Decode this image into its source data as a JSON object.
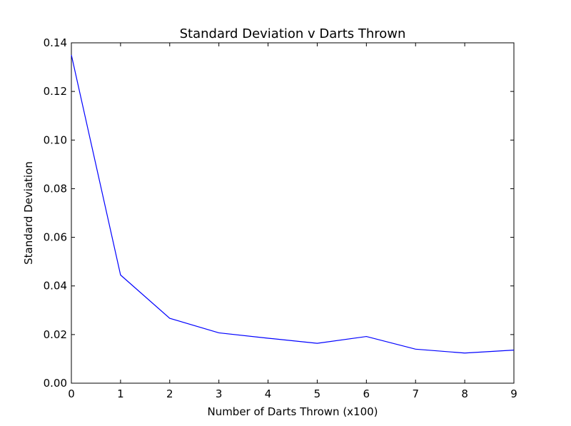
{
  "chart_data": {
    "type": "line",
    "title": "Standard Deviation v Darts Thrown",
    "xlabel": "Number of Darts Thrown (x100)",
    "ylabel": "Standard Deviation",
    "xlim": [
      0,
      9
    ],
    "ylim": [
      0,
      0.14
    ],
    "x_ticks": [
      0,
      1,
      2,
      3,
      4,
      5,
      6,
      7,
      8,
      9
    ],
    "x_tick_labels": [
      "0",
      "1",
      "2",
      "3",
      "4",
      "5",
      "6",
      "7",
      "8",
      "9"
    ],
    "y_ticks": [
      0,
      0.02,
      0.04,
      0.06,
      0.08,
      0.1,
      0.12,
      0.14
    ],
    "y_tick_labels": [
      "0.00",
      "0.02",
      "0.04",
      "0.06",
      "0.08",
      "0.10",
      "0.12",
      "0.14"
    ],
    "grid": false,
    "series": [
      {
        "color": "#0000ff",
        "x": [
          0,
          1,
          2,
          3,
          4,
          5,
          6,
          7,
          8,
          9
        ],
        "y": [
          0.135,
          0.0445,
          0.0267,
          0.0207,
          0.0185,
          0.0164,
          0.0192,
          0.014,
          0.0124,
          0.0136
        ]
      }
    ]
  }
}
